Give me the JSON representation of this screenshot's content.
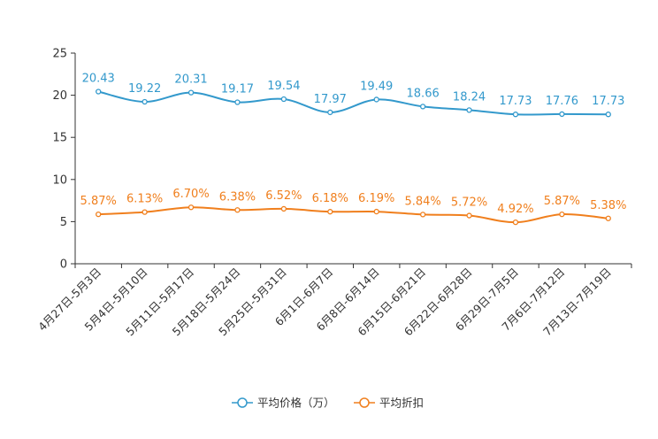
{
  "chart_data": {
    "type": "line",
    "title": "",
    "xlabel": "",
    "ylabel": "",
    "ylim": [
      0,
      25
    ],
    "yticks": [
      0,
      5,
      10,
      15,
      20,
      25
    ],
    "grid": false,
    "legend_position": "bottom-center",
    "categories": [
      "4月27日-5月3日",
      "5月4日-5月10日",
      "5月11日-5月17日",
      "5月18日-5月24日",
      "5月25日-5月31日",
      "6月1日-6月7日",
      "6月8日-6月14日",
      "6月15日-6月21日",
      "6月22日-6月28日",
      "6月29日-7月5日",
      "7月6日-7月12日",
      "7月13日-7月19日"
    ],
    "series": [
      {
        "name": "平均价格（万）",
        "color": "#3399cc",
        "values": [
          20.43,
          19.22,
          20.31,
          19.17,
          19.54,
          17.97,
          19.49,
          18.66,
          18.24,
          17.73,
          17.76,
          17.73
        ],
        "labels": [
          "20.43",
          "19.22",
          "20.31",
          "19.17",
          "19.54",
          "17.97",
          "19.49",
          "18.66",
          "18.24",
          "17.73",
          "17.76",
          "17.73"
        ]
      },
      {
        "name": "平均折扣",
        "color": "#f07f1d",
        "values": [
          5.87,
          6.13,
          6.7,
          6.38,
          6.52,
          6.18,
          6.19,
          5.84,
          5.72,
          4.92,
          5.87,
          5.38
        ],
        "labels": [
          "5.87%",
          "6.13%",
          "6.70%",
          "6.38%",
          "6.52%",
          "6.18%",
          "6.19%",
          "5.84%",
          "5.72%",
          "4.92%",
          "5.87%",
          "5.38%"
        ]
      }
    ]
  }
}
